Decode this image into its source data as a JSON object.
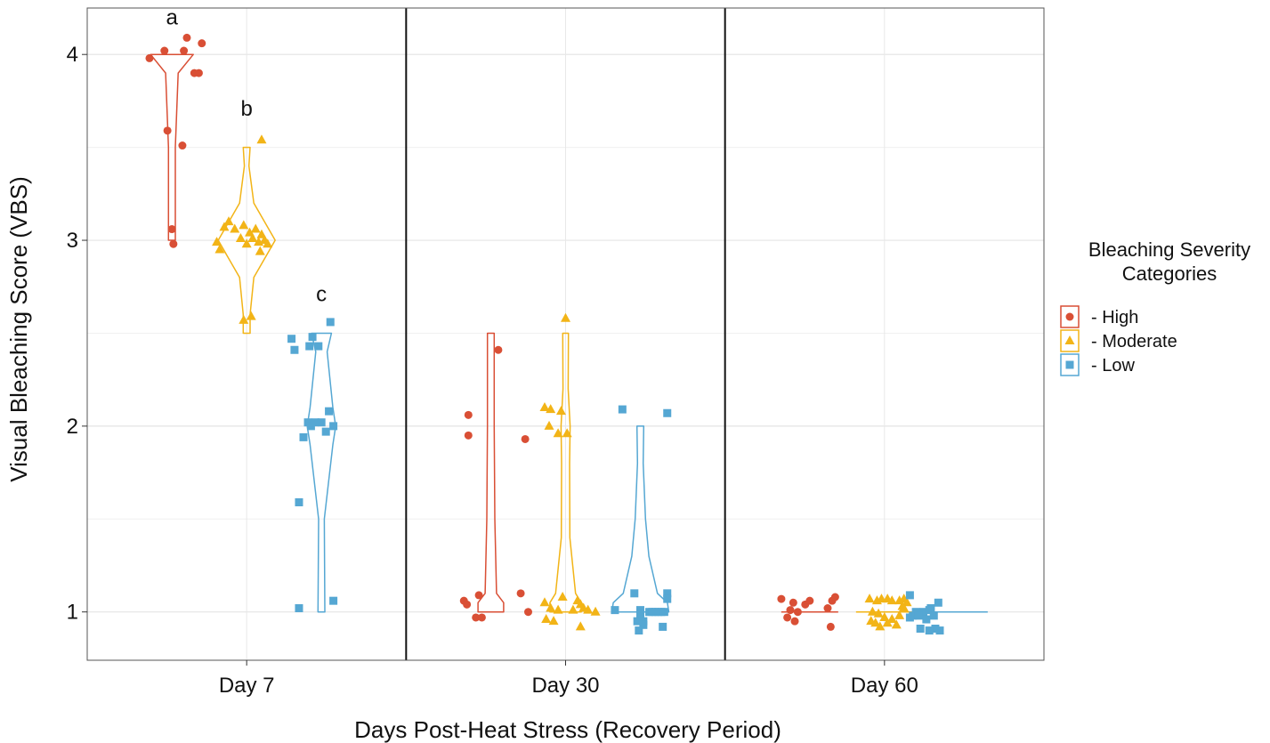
{
  "chart_data": {
    "type": "violin",
    "xlabel": "Days Post-Heat Stress (Recovery Period)",
    "ylabel": "Visual Bleaching Score (VBS)",
    "panels": [
      "Day 7",
      "Day 30",
      "Day 60"
    ],
    "yticks": [
      "1",
      "2",
      "3",
      "4"
    ],
    "ylim": [
      0.74,
      4.25
    ],
    "grid": true,
    "legend": {
      "title_lines": [
        "Bleaching Severity",
        "Categories"
      ],
      "position": "right",
      "entries": [
        "- High",
        "- Moderate",
        "- Low"
      ]
    },
    "series": [
      {
        "name": "High",
        "color": "#d94f35",
        "shape": "circle"
      },
      {
        "name": "Moderate",
        "color": "#f2b417",
        "shape": "triangle"
      },
      {
        "name": "Low",
        "color": "#55a7d3",
        "shape": "square"
      }
    ],
    "violins": [
      {
        "panel": 0,
        "series": 0,
        "range": [
          3,
          4
        ],
        "profile": [
          [
            3.0,
            0.12
          ],
          [
            3.5,
            0.12
          ],
          [
            3.9,
            0.22
          ],
          [
            4.0,
            0.75
          ]
        ]
      },
      {
        "panel": 0,
        "series": 1,
        "range": [
          2.5,
          3.5
        ],
        "profile": [
          [
            2.5,
            0.12
          ],
          [
            2.6,
            0.12
          ],
          [
            2.8,
            0.25
          ],
          [
            3.0,
            1.0
          ],
          [
            3.2,
            0.25
          ],
          [
            3.4,
            0.08
          ],
          [
            3.5,
            0.12
          ]
        ]
      },
      {
        "panel": 0,
        "series": 2,
        "range": [
          1,
          2.5
        ],
        "profile": [
          [
            1.0,
            0.12
          ],
          [
            1.5,
            0.1
          ],
          [
            1.9,
            0.4
          ],
          [
            2.0,
            0.5
          ],
          [
            2.1,
            0.4
          ],
          [
            2.4,
            0.2
          ],
          [
            2.5,
            0.35
          ]
        ]
      },
      {
        "panel": 1,
        "series": 0,
        "range": [
          1,
          2.5
        ],
        "profile": [
          [
            1.0,
            0.45
          ],
          [
            1.05,
            0.45
          ],
          [
            1.1,
            0.2
          ],
          [
            1.5,
            0.14
          ],
          [
            2.0,
            0.12
          ],
          [
            2.5,
            0.12
          ]
        ]
      },
      {
        "panel": 1,
        "series": 1,
        "range": [
          1,
          2.5
        ],
        "profile": [
          [
            1.0,
            0.55
          ],
          [
            1.05,
            0.55
          ],
          [
            1.1,
            0.35
          ],
          [
            1.4,
            0.15
          ],
          [
            1.8,
            0.14
          ],
          [
            2.0,
            0.16
          ],
          [
            2.2,
            0.09
          ],
          [
            2.5,
            0.1
          ]
        ]
      },
      {
        "panel": 1,
        "series": 2,
        "range": [
          1,
          2
        ],
        "profile": [
          [
            1.0,
            1.0
          ],
          [
            1.05,
            0.95
          ],
          [
            1.1,
            0.6
          ],
          [
            1.3,
            0.3
          ],
          [
            1.5,
            0.18
          ],
          [
            1.8,
            0.1
          ],
          [
            2.0,
            0.12
          ]
        ]
      },
      {
        "panel": 2,
        "series": 0,
        "range": [
          1,
          1
        ],
        "profile": [
          [
            1.0,
            1.0
          ]
        ]
      },
      {
        "panel": 2,
        "series": 1,
        "range": [
          1,
          1
        ],
        "profile": [
          [
            1.0,
            1.0
          ]
        ]
      },
      {
        "panel": 2,
        "series": 2,
        "range": [
          1,
          1
        ],
        "profile": [
          [
            1.0,
            1.0
          ]
        ]
      }
    ],
    "points": [
      {
        "panel": 0,
        "series": 0,
        "pts": [
          [
            -0.65,
            3.98
          ],
          [
            -0.55,
            4.02
          ],
          [
            -0.4,
            4.09
          ],
          [
            -0.42,
            4.02
          ],
          [
            -0.35,
            3.9
          ],
          [
            -0.3,
            4.06
          ],
          [
            -0.32,
            3.9
          ],
          [
            -0.53,
            3.59
          ],
          [
            -0.43,
            3.51
          ],
          [
            -0.5,
            3.06
          ],
          [
            -0.49,
            2.98
          ]
        ]
      },
      {
        "panel": 0,
        "series": 1,
        "pts": [
          [
            0.1,
            3.54
          ],
          [
            -0.2,
            2.99
          ],
          [
            -0.15,
            3.07
          ],
          [
            -0.12,
            3.1
          ],
          [
            -0.08,
            3.06
          ],
          [
            -0.04,
            3.01
          ],
          [
            -0.02,
            3.08
          ],
          [
            0.0,
            2.98
          ],
          [
            0.02,
            3.04
          ],
          [
            0.04,
            3.01
          ],
          [
            0.06,
            3.06
          ],
          [
            0.08,
            2.99
          ],
          [
            0.1,
            3.03
          ],
          [
            0.12,
            3.0
          ],
          [
            -0.18,
            2.95
          ],
          [
            0.09,
            2.94
          ],
          [
            0.14,
            2.98
          ],
          [
            -0.02,
            2.57
          ],
          [
            0.03,
            2.59
          ]
        ]
      },
      {
        "panel": 0,
        "series": 2,
        "pts": [
          [
            0.3,
            2.47
          ],
          [
            0.32,
            2.41
          ],
          [
            0.42,
            2.43
          ],
          [
            0.44,
            2.48
          ],
          [
            0.48,
            2.43
          ],
          [
            0.56,
            2.56
          ],
          [
            0.55,
            2.08
          ],
          [
            0.58,
            2.0
          ],
          [
            0.41,
            2.02
          ],
          [
            0.43,
            2.0
          ],
          [
            0.46,
            2.02
          ],
          [
            0.5,
            2.02
          ],
          [
            0.53,
            1.97
          ],
          [
            0.38,
            1.94
          ],
          [
            0.35,
            1.59
          ],
          [
            0.35,
            1.02
          ],
          [
            0.58,
            1.06
          ]
        ]
      },
      {
        "panel": 1,
        "series": 0,
        "pts": [
          [
            -0.65,
            2.06
          ],
          [
            -0.65,
            1.95
          ],
          [
            -0.45,
            2.41
          ],
          [
            -0.27,
            1.93
          ],
          [
            -0.68,
            1.06
          ],
          [
            -0.66,
            1.04
          ],
          [
            -0.58,
            1.09
          ],
          [
            -0.3,
            1.1
          ],
          [
            -0.6,
            0.97
          ],
          [
            -0.56,
            0.97
          ],
          [
            -0.25,
            1.0
          ]
        ]
      },
      {
        "panel": 1,
        "series": 1,
        "pts": [
          [
            0.0,
            2.58
          ],
          [
            -0.14,
            2.1
          ],
          [
            -0.1,
            2.09
          ],
          [
            -0.03,
            2.08
          ],
          [
            -0.11,
            2.0
          ],
          [
            -0.05,
            1.96
          ],
          [
            0.01,
            1.96
          ],
          [
            -0.02,
            1.08
          ],
          [
            0.08,
            1.06
          ],
          [
            0.1,
            1.04
          ],
          [
            -0.14,
            1.05
          ],
          [
            -0.1,
            1.02
          ],
          [
            -0.05,
            1.01
          ],
          [
            0.05,
            1.01
          ],
          [
            0.12,
            1.02
          ],
          [
            -0.13,
            0.96
          ],
          [
            -0.08,
            0.95
          ],
          [
            0.15,
            1.01
          ],
          [
            0.1,
            0.92
          ],
          [
            0.2,
            1.0
          ]
        ]
      },
      {
        "panel": 1,
        "series": 2,
        "pts": [
          [
            0.38,
            2.09
          ],
          [
            0.68,
            2.07
          ],
          [
            0.46,
            1.1
          ],
          [
            0.68,
            1.1
          ],
          [
            0.68,
            1.07
          ],
          [
            0.5,
            1.01
          ],
          [
            0.52,
            0.95
          ],
          [
            0.56,
            1.0
          ],
          [
            0.6,
            1.0
          ],
          [
            0.62,
            1.0
          ],
          [
            0.64,
            1.0
          ],
          [
            0.66,
            1.0
          ],
          [
            0.5,
            0.99
          ],
          [
            0.52,
            0.93
          ],
          [
            0.58,
            1.0
          ],
          [
            0.65,
            0.92
          ],
          [
            0.33,
            1.01
          ],
          [
            0.48,
            0.95
          ],
          [
            0.49,
            0.9
          ]
        ]
      },
      {
        "panel": 2,
        "series": 0,
        "pts": [
          [
            -0.69,
            1.07
          ],
          [
            -0.61,
            1.05
          ],
          [
            -0.53,
            1.04
          ],
          [
            -0.5,
            1.06
          ],
          [
            -0.63,
            1.01
          ],
          [
            -0.58,
            1.0
          ],
          [
            -0.65,
            0.97
          ],
          [
            -0.6,
            0.95
          ],
          [
            -0.35,
            1.06
          ],
          [
            -0.33,
            1.08
          ],
          [
            -0.38,
            1.02
          ],
          [
            -0.36,
            0.92
          ]
        ]
      },
      {
        "panel": 2,
        "series": 1,
        "pts": [
          [
            -0.1,
            1.07
          ],
          [
            -0.05,
            1.06
          ],
          [
            -0.02,
            1.07
          ],
          [
            0.02,
            1.07
          ],
          [
            0.05,
            1.06
          ],
          [
            0.1,
            1.06
          ],
          [
            0.13,
            1.07
          ],
          [
            0.15,
            1.05
          ],
          [
            -0.08,
            1.0
          ],
          [
            -0.04,
            0.99
          ],
          [
            0.0,
            0.97
          ],
          [
            0.05,
            0.96
          ],
          [
            0.1,
            0.98
          ],
          [
            0.13,
            1.02
          ],
          [
            -0.09,
            0.95
          ],
          [
            -0.06,
            0.94
          ],
          [
            -0.03,
            0.92
          ],
          [
            0.02,
            0.94
          ],
          [
            0.08,
            0.93
          ],
          [
            0.12,
            1.03
          ]
        ]
      },
      {
        "panel": 2,
        "series": 2,
        "pts": [
          [
            0.17,
            1.09
          ],
          [
            0.26,
            1.0
          ],
          [
            0.3,
            1.01
          ],
          [
            0.36,
            1.05
          ],
          [
            0.31,
            1.02
          ],
          [
            0.17,
            0.97
          ],
          [
            0.19,
            0.98
          ],
          [
            0.21,
            1.0
          ],
          [
            0.23,
            0.98
          ],
          [
            0.33,
            0.98
          ],
          [
            0.28,
            0.96
          ],
          [
            0.24,
            0.91
          ],
          [
            0.34,
            0.91
          ],
          [
            0.37,
            0.9
          ],
          [
            0.3,
            0.9
          ]
        ]
      }
    ],
    "annotations": [
      {
        "text": "a",
        "panel": 0,
        "xoff": -0.5,
        "y": 4.2
      },
      {
        "text": "b",
        "panel": 0,
        "xoff": 0.0,
        "y": 3.71
      },
      {
        "text": "c",
        "panel": 0,
        "xoff": 0.5,
        "y": 2.71
      }
    ]
  }
}
